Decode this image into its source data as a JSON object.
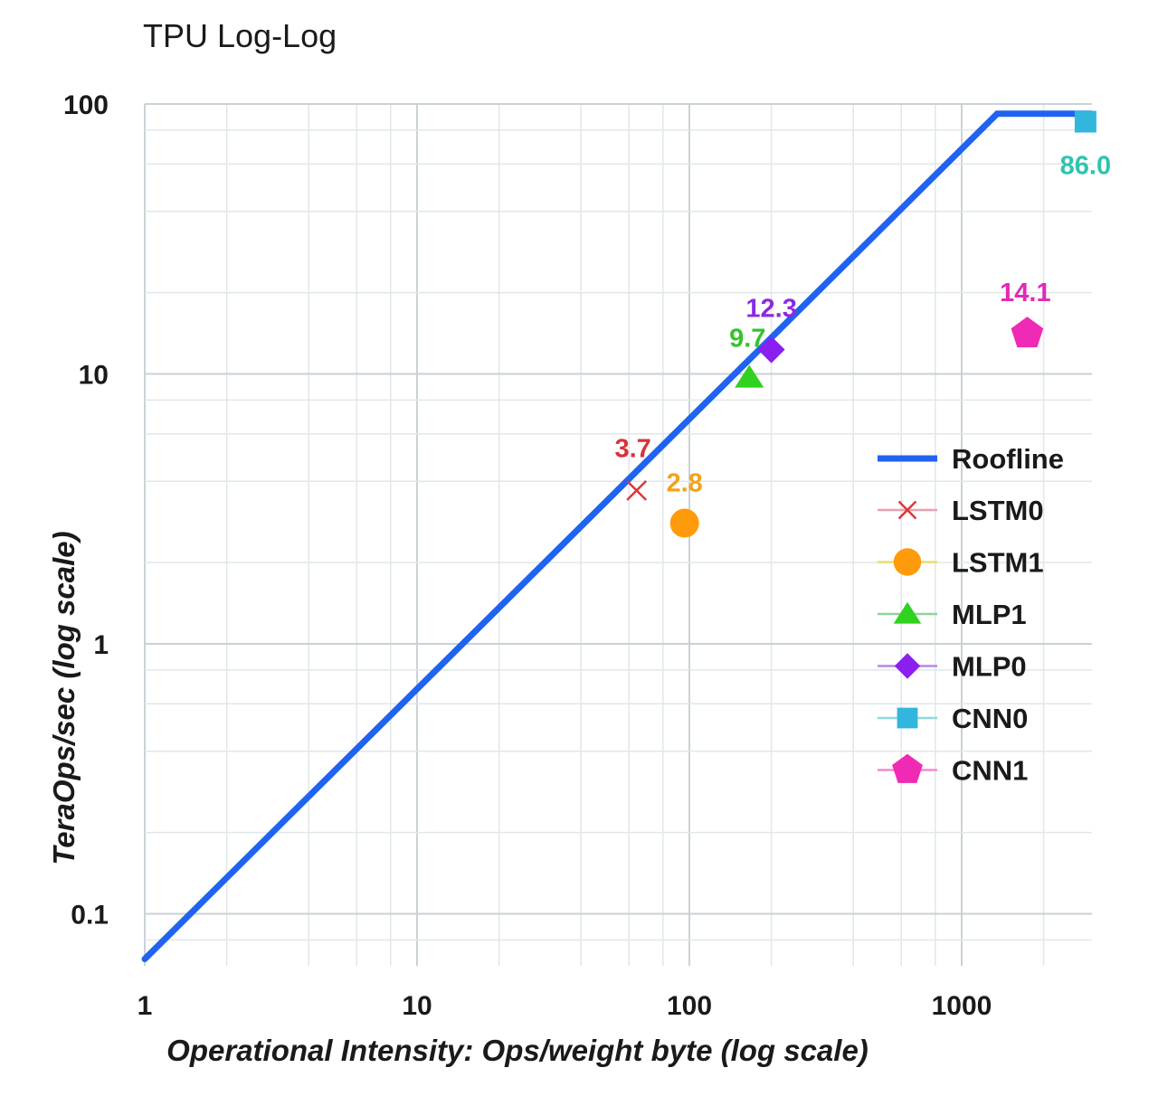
{
  "chart_data": {
    "type": "line",
    "title": "TPU Log-Log",
    "xlabel": "Operational Intensity: Ops/weight byte (log scale)",
    "ylabel": "TeraOps/sec (log scale)",
    "xscale": "log",
    "yscale": "log",
    "xlim": [
      1,
      3000
    ],
    "ylim": [
      0.065,
      100
    ],
    "x_ticks": [
      1,
      10,
      100,
      1000
    ],
    "x_tick_labels": [
      "1",
      "10",
      "100",
      "1000"
    ],
    "y_ticks": [
      0.1,
      1,
      10,
      100
    ],
    "y_tick_labels": [
      "0.1",
      "1",
      "10",
      "100"
    ],
    "grid": true,
    "minor_grid_multipliers": [
      2,
      4,
      6,
      8
    ],
    "legend_position": "right",
    "roofline": {
      "name": "Roofline",
      "color": "#1f63f0",
      "points": [
        [
          1,
          0.068
        ],
        [
          1350,
          92
        ],
        [
          3000,
          92
        ]
      ]
    },
    "series": [
      {
        "name": "LSTM0",
        "marker": "x",
        "color": "#e0353a",
        "label_color": "#d8323a",
        "line_color": "#e8a0b0",
        "x": 64,
        "y": 3.7,
        "label": "3.7",
        "label_pos": "above-left"
      },
      {
        "name": "LSTM1",
        "marker": "circle",
        "color": "#ff9a0a",
        "label_color": "#f4a21a",
        "line_color": "#e8e070",
        "x": 96,
        "y": 2.8,
        "label": "2.8",
        "label_pos": "above"
      },
      {
        "name": "MLP1",
        "marker": "triangle",
        "color": "#2fd21f",
        "label_color": "#35c42a",
        "line_color": "#8fd49a",
        "x": 166,
        "y": 9.7,
        "label": "9.7",
        "label_pos": "above"
      },
      {
        "name": "MLP0",
        "marker": "diamond",
        "color": "#8a1ff0",
        "label_color": "#8a2be2",
        "line_color": "#b58ae0",
        "x": 200,
        "y": 12.3,
        "label": "12.3",
        "label_pos": "above"
      },
      {
        "name": "CNN0",
        "marker": "square",
        "color": "#33b6de",
        "label_color": "#2dc4b0",
        "line_color": "#8fd8e0",
        "x": 2850,
        "y": 86.0,
        "label": "86.0",
        "label_pos": "below"
      },
      {
        "name": "CNN1",
        "marker": "pentagon",
        "color": "#f02ab4",
        "label_color": "#e02ab4",
        "line_color": "#f08ad0",
        "x": 1740,
        "y": 14.1,
        "label": "14.1",
        "label_pos": "above"
      }
    ]
  }
}
